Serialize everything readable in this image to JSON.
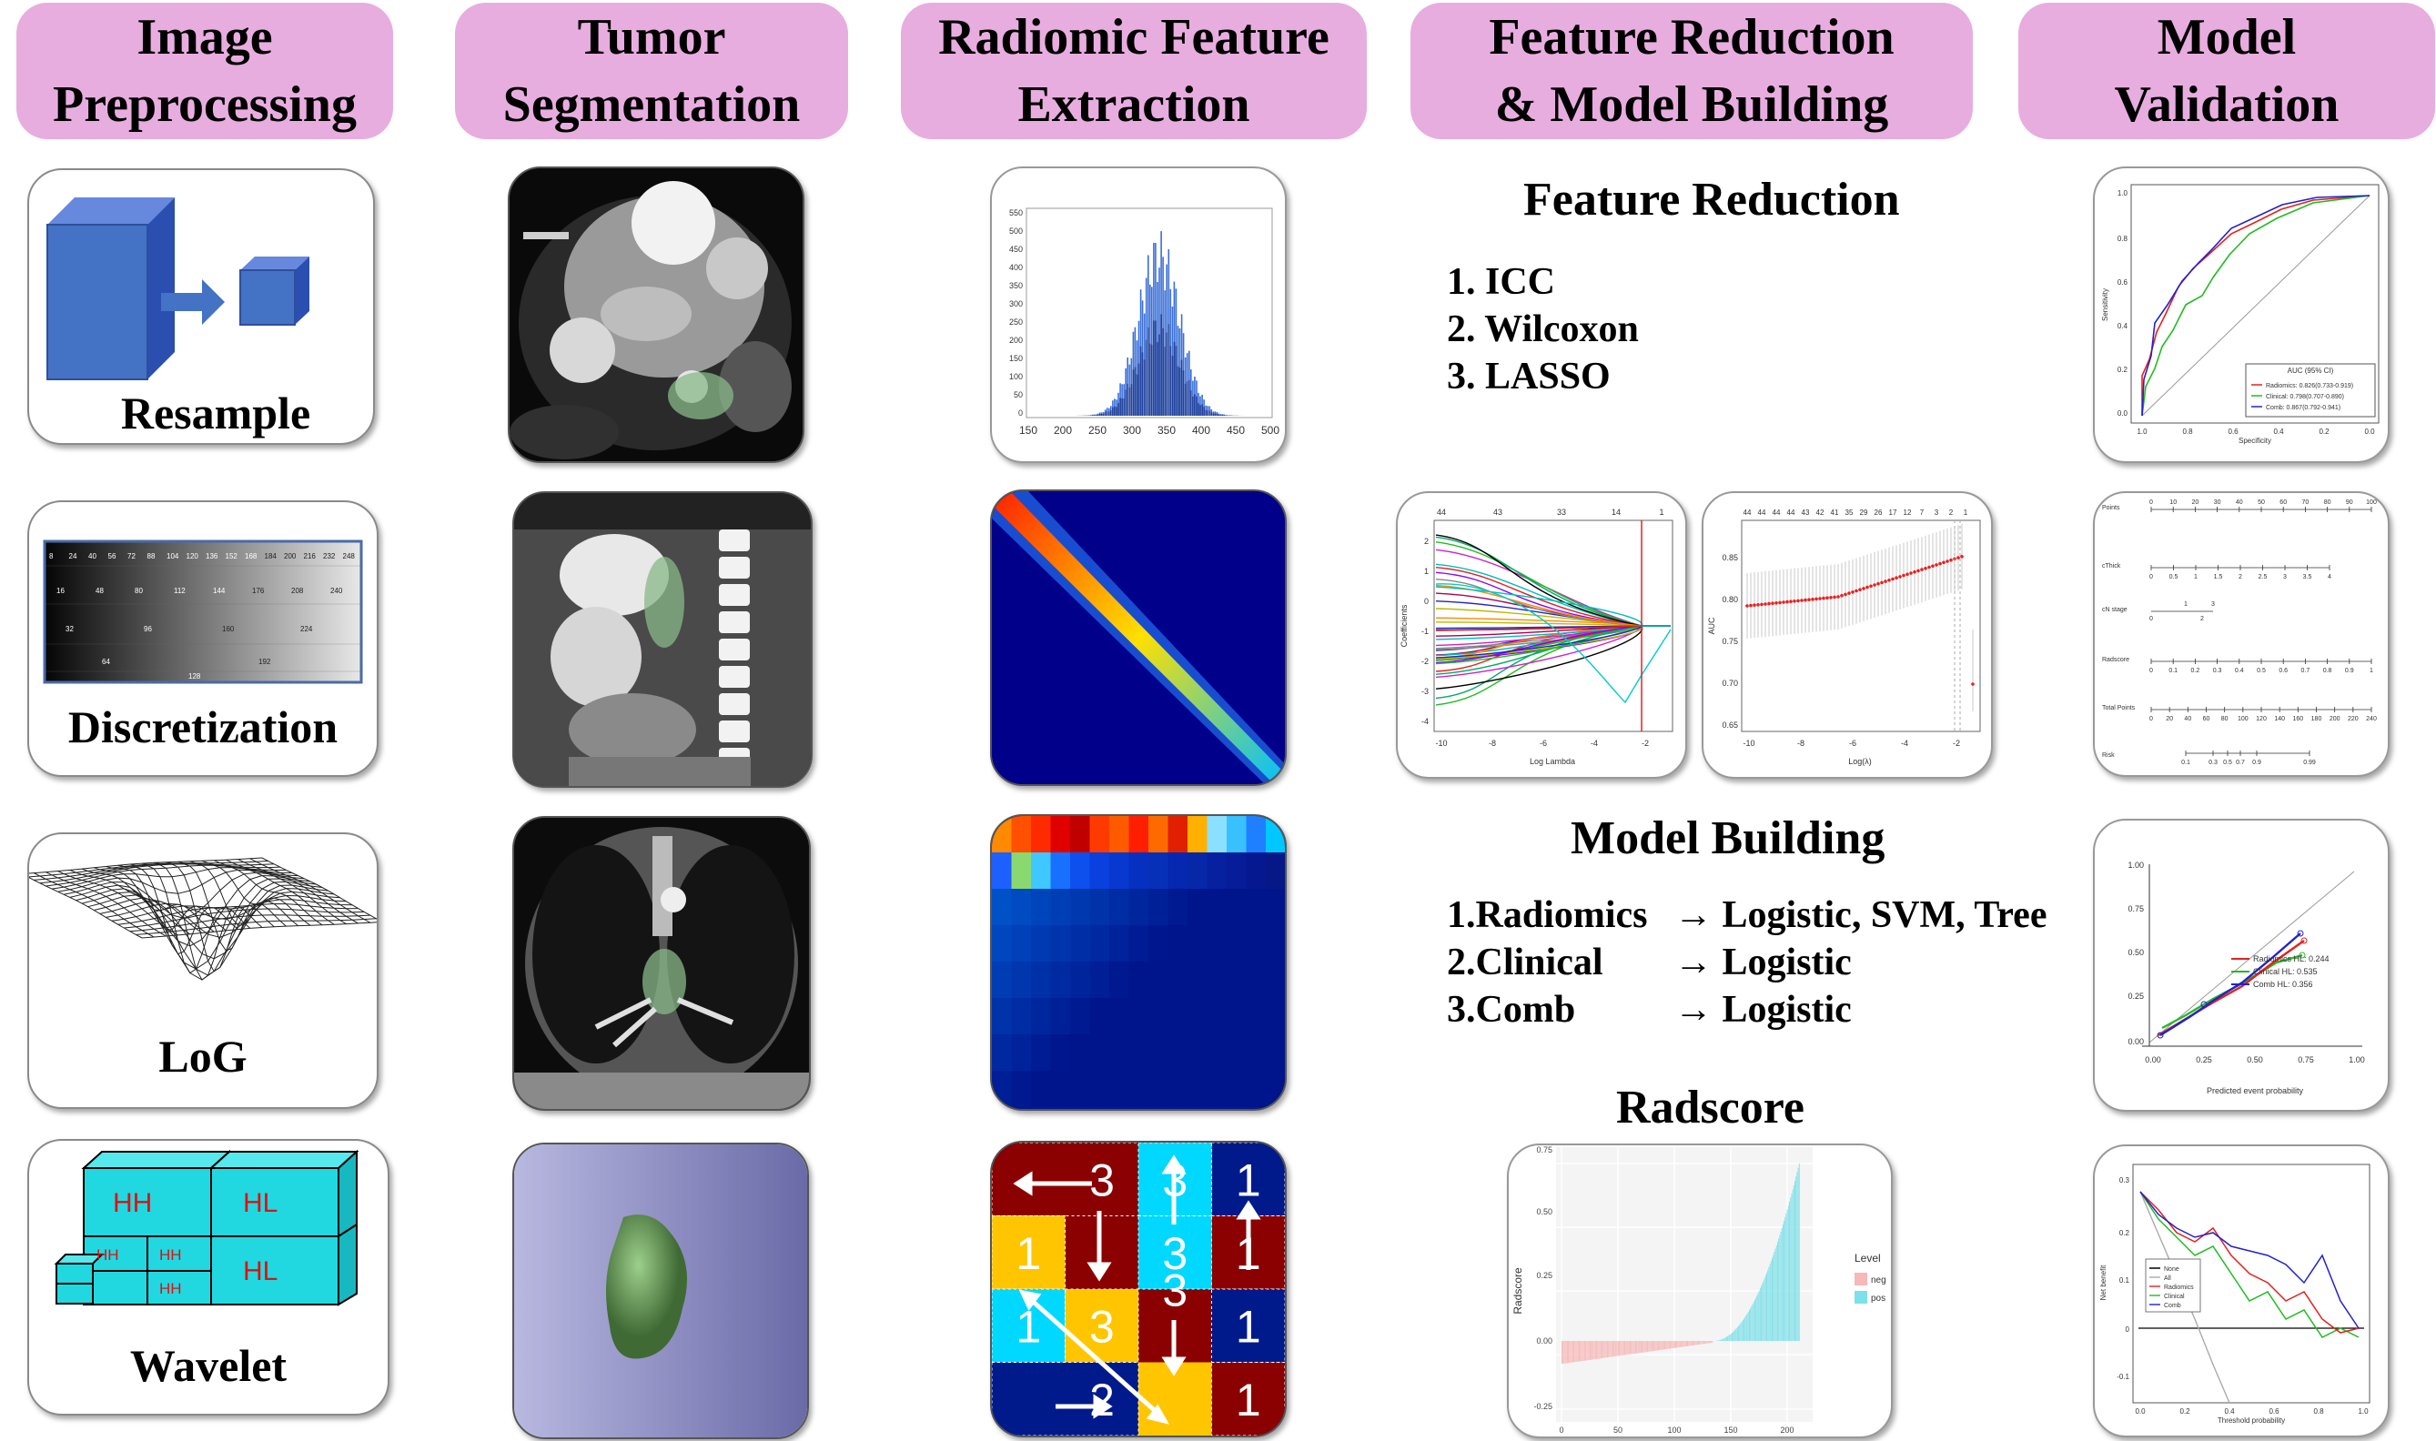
{
  "headers": [
    {
      "line1": "Image",
      "line2": "Preprocessing"
    },
    {
      "line1": "Tumor",
      "line2": "Segmentation"
    },
    {
      "line1": "Radiomic Feature",
      "line2": "Extraction"
    },
    {
      "line1": "Feature Reduction",
      "line2": "& Model Building"
    },
    {
      "line1": "Model",
      "line2": "Validation"
    }
  ],
  "preprocessing": [
    "Resample",
    "Discretization",
    "LoG",
    "Wavelet"
  ],
  "wavelet_blocks": [
    "HH",
    "HL",
    "HL",
    "HH",
    "HH",
    "HH"
  ],
  "histogram_ticks_x": [
    "150",
    "200",
    "250",
    "300",
    "350",
    "400",
    "450",
    "500"
  ],
  "histogram_ticks_y": [
    "550",
    "500",
    "450",
    "400",
    "350",
    "300",
    "250",
    "200",
    "150",
    "100",
    "50",
    "0"
  ],
  "discretization_values": [
    "8",
    "24",
    "40",
    "56",
    "72",
    "88",
    "104",
    "120",
    "136",
    "152",
    "168",
    "184",
    "200",
    "216",
    "232",
    "248",
    "16",
    "48",
    "80",
    "112",
    "144",
    "176",
    "208",
    "240",
    "32",
    "96",
    "160",
    "224",
    "64",
    "192",
    "128"
  ],
  "feature_reduction": {
    "title": "Feature Reduction",
    "items": [
      "1. ICC",
      "2. Wilcoxon",
      "3. LASSO"
    ]
  },
  "lasso_top_ticks": [
    "44",
    "43",
    "33",
    "14",
    "1"
  ],
  "lasso_y_ticks": [
    "2",
    "1",
    "0",
    "-1",
    "-2",
    "-3",
    "-4"
  ],
  "lasso_x_ticks": [
    "-10",
    "-8",
    "-6",
    "-4",
    "-2"
  ],
  "lasso_xlabel": "Log Lambda",
  "lasso_ylabel": "Coefficients",
  "cv_top_ticks": [
    "44",
    "44",
    "44",
    "44",
    "43",
    "42",
    "41",
    "35",
    "29",
    "26",
    "17",
    "12",
    "7",
    "3",
    "2",
    "1"
  ],
  "cv_y_ticks": [
    "0.85",
    "0.80",
    "0.75",
    "0.70",
    "0.65"
  ],
  "cv_x_ticks": [
    "-10",
    "-8",
    "-6",
    "-4",
    "-2"
  ],
  "cv_xlabel": "Log(λ)",
  "cv_ylabel": "AUC",
  "model_building": {
    "title": "Model Building",
    "rows": [
      {
        "left": "1.Radiomics",
        "right": "→ Logistic, SVM, Tree"
      },
      {
        "left": "2.Clinical",
        "right": "→ Logistic"
      },
      {
        "left": "3.Comb",
        "right": "→ Logistic"
      }
    ]
  },
  "radscore": {
    "title": "Radscore",
    "ylabel": "Radscore",
    "y_ticks": [
      "0.75",
      "0.50",
      "0.25",
      "0.00",
      "-0.25"
    ],
    "x_ticks": [
      "0",
      "50",
      "100",
      "150",
      "200"
    ],
    "legend_title": "Level",
    "legend_items": [
      {
        "label": "neg",
        "color": "#f6b8b8"
      },
      {
        "label": "pos",
        "color": "#7ee0e8"
      }
    ]
  },
  "roc": {
    "ylabel": "Sensitivity",
    "xlabel": "Specificity",
    "y_ticks": [
      "1.0",
      "0.8",
      "0.6",
      "0.4",
      "0.2",
      "0.0"
    ],
    "x_ticks": [
      "1.0",
      "0.8",
      "0.6",
      "0.4",
      "0.2",
      "0.0"
    ],
    "legend_title": "AUC (95% CI)",
    "legend": [
      {
        "label": "Radiomics: 0.826(0.733-0.919)",
        "color": "#e52020"
      },
      {
        "label": "Clinical: 0.798(0.707-0.890)",
        "color": "#22bb22"
      },
      {
        "label": "Comb: 0.867(0.792-0.941)",
        "color": "#2222cc"
      }
    ]
  },
  "nomogram": {
    "rows": [
      "Points",
      "cThick",
      "cN stage",
      "Radscore",
      "Total Points",
      "Risk"
    ],
    "points_ticks": [
      "0",
      "10",
      "20",
      "30",
      "40",
      "50",
      "60",
      "70",
      "80",
      "90",
      "100"
    ],
    "cthick_ticks": [
      "0",
      "0.5",
      "1",
      "1.5",
      "2",
      "2.5",
      "3",
      "3.5",
      "4"
    ],
    "cn_ticks": [
      "1",
      "3",
      "0",
      "2"
    ],
    "radscore_ticks": [
      "0",
      "0.1",
      "0.2",
      "0.3",
      "0.4",
      "0.5",
      "0.6",
      "0.7",
      "0.8",
      "0.9",
      "1"
    ],
    "total_ticks": [
      "0",
      "20",
      "40",
      "60",
      "80",
      "100",
      "120",
      "140",
      "160",
      "180",
      "200",
      "220",
      "240"
    ],
    "risk_ticks": [
      "0.1",
      "0.3",
      "0.5",
      "0.7",
      "0.9",
      "0.99"
    ]
  },
  "calibration": {
    "y_ticks": [
      "1.00",
      "0.75",
      "0.50",
      "0.25",
      "0.00"
    ],
    "x_ticks": [
      "0.00",
      "0.25",
      "0.50",
      "0.75",
      "1.00"
    ],
    "xlabel": "Predicted event probability",
    "legend": [
      {
        "label": "Radiomics HL: 0.244",
        "color": "#e52020"
      },
      {
        "label": "Clinical HL: 0.535",
        "color": "#22bb22"
      },
      {
        "label": "Comb HL: 0.356",
        "color": "#2222cc"
      }
    ]
  },
  "dca": {
    "ylabel": "Net benefit",
    "xlabel": "Threshold probability",
    "y_ticks": [
      "0.3",
      "0.2",
      "0.1",
      "0",
      "-0.1"
    ],
    "x_ticks": [
      "0.0",
      "0.2",
      "0.4",
      "0.6",
      "0.8",
      "1.0"
    ],
    "legend": [
      {
        "label": "None",
        "color": "#000000"
      },
      {
        "label": "All",
        "color": "#aaaaaa"
      },
      {
        "label": "Radiomics",
        "color": "#e52020"
      },
      {
        "label": "Clinical",
        "color": "#22bb22"
      },
      {
        "label": "Comb",
        "color": "#2222cc"
      }
    ]
  },
  "glrlm_cells": [
    {
      "v": "3",
      "bg": "#8b0000"
    },
    {
      "v": "3",
      "bg": "#00d8ff"
    },
    {
      "v": "1",
      "bg": "#001a8c"
    },
    {
      "v": "1",
      "bg": "#ffc600"
    },
    {
      "v": "3",
      "bg": "#00d8ff"
    },
    {
      "v": "1",
      "bg": "#8b0000"
    },
    {
      "v": "1",
      "bg": "#00d8ff"
    },
    {
      "v": "3",
      "bg": "#ffc600"
    },
    {
      "v": "1",
      "bg": "#001a8c"
    },
    {
      "v": "2",
      "bg": "#001a8c"
    },
    {
      "v": "1",
      "bg": "#8b0000"
    }
  ]
}
